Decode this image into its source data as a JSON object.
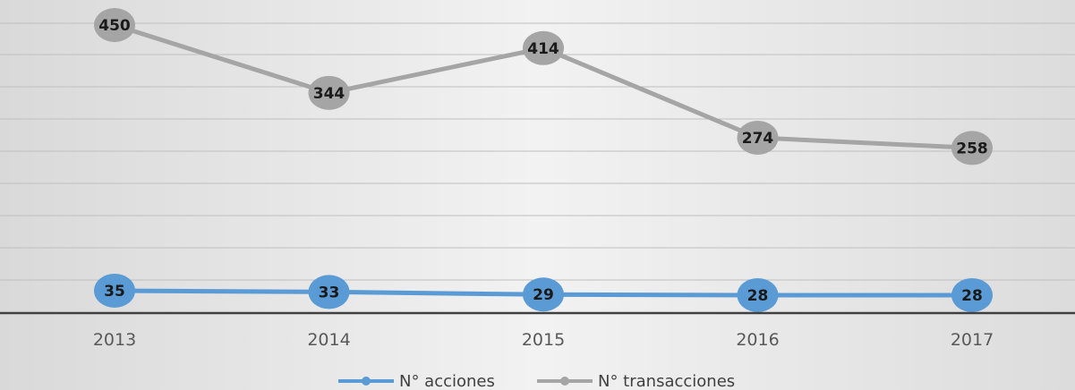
{
  "chart_data": {
    "type": "line",
    "categories": [
      "2013",
      "2014",
      "2015",
      "2016",
      "2017"
    ],
    "series": [
      {
        "name": "N° acciones",
        "values": [
          35,
          33,
          29,
          28,
          28
        ],
        "color": "#5b9bd5"
      },
      {
        "name": "N° transacciones",
        "values": [
          450,
          344,
          414,
          274,
          258
        ],
        "color": "#a5a5a5"
      }
    ],
    "title": "",
    "xlabel": "",
    "ylabel": "",
    "ylim": [
      0,
      450
    ],
    "grid": true,
    "legend": "bottom",
    "data_labels": true
  }
}
